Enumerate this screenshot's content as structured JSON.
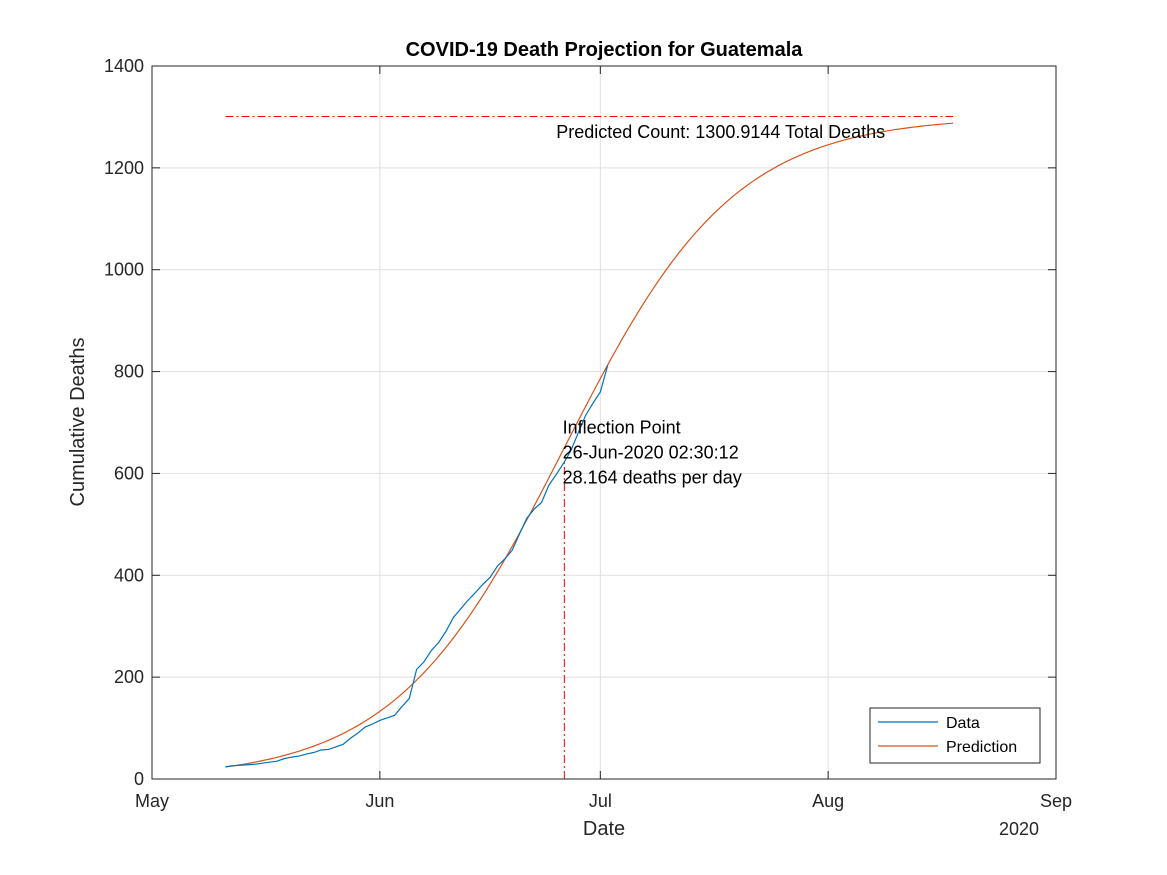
{
  "chart_data": {
    "type": "line",
    "title": "COVID-19 Death Projection for Guatemala",
    "xlabel": "Date",
    "ylabel": "Cumulative Deaths",
    "year_label": "2020",
    "x_range": [
      "2020-05-01",
      "2020-09-01"
    ],
    "ylim": [
      0,
      1400
    ],
    "x_ticks": [
      {
        "date": "2020-05-01",
        "label": "May"
      },
      {
        "date": "2020-06-01",
        "label": "Jun"
      },
      {
        "date": "2020-07-01",
        "label": "Jul"
      },
      {
        "date": "2020-08-01",
        "label": "Aug"
      },
      {
        "date": "2020-09-01",
        "label": "Sep"
      }
    ],
    "y_ticks": [
      0,
      200,
      400,
      600,
      800,
      1000,
      1200,
      1400
    ],
    "grid": true,
    "legend_position": "bottom-right",
    "series": [
      {
        "name": "Data",
        "color": "#0072BD",
        "points": [
          [
            "2020-05-11",
            24
          ],
          [
            "2020-05-12",
            26
          ],
          [
            "2020-05-13",
            27
          ],
          [
            "2020-05-14",
            28
          ],
          [
            "2020-05-15",
            29
          ],
          [
            "2020-05-16",
            31
          ],
          [
            "2020-05-17",
            33
          ],
          [
            "2020-05-18",
            35
          ],
          [
            "2020-05-19",
            40
          ],
          [
            "2020-05-20",
            43
          ],
          [
            "2020-05-21",
            45
          ],
          [
            "2020-05-22",
            49
          ],
          [
            "2020-05-23",
            52
          ],
          [
            "2020-05-24",
            57
          ],
          [
            "2020-05-25",
            58
          ],
          [
            "2020-05-26",
            63
          ],
          [
            "2020-05-27",
            68
          ],
          [
            "2020-05-28",
            80
          ],
          [
            "2020-05-29",
            90
          ],
          [
            "2020-05-30",
            102
          ],
          [
            "2020-05-31",
            108
          ],
          [
            "2020-06-01",
            115
          ],
          [
            "2020-06-02",
            120
          ],
          [
            "2020-06-03",
            125
          ],
          [
            "2020-06-04",
            142
          ],
          [
            "2020-06-05",
            158
          ],
          [
            "2020-06-06",
            215
          ],
          [
            "2020-06-07",
            230
          ],
          [
            "2020-06-08",
            252
          ],
          [
            "2020-06-09",
            268
          ],
          [
            "2020-06-10",
            290
          ],
          [
            "2020-06-11",
            317
          ],
          [
            "2020-06-12",
            334
          ],
          [
            "2020-06-13",
            351
          ],
          [
            "2020-06-14",
            366
          ],
          [
            "2020-06-15",
            382
          ],
          [
            "2020-06-16",
            396
          ],
          [
            "2020-06-17",
            418
          ],
          [
            "2020-06-18",
            432
          ],
          [
            "2020-06-19",
            449
          ],
          [
            "2020-06-20",
            481
          ],
          [
            "2020-06-21",
            512
          ],
          [
            "2020-06-22",
            530
          ],
          [
            "2020-06-23",
            543
          ],
          [
            "2020-06-24",
            577
          ],
          [
            "2020-06-25",
            598
          ],
          [
            "2020-06-26",
            620
          ],
          [
            "2020-06-27",
            645
          ],
          [
            "2020-06-28",
            680
          ],
          [
            "2020-06-29",
            714
          ],
          [
            "2020-06-30",
            738
          ],
          [
            "2020-07-01",
            760
          ],
          [
            "2020-07-02",
            812
          ]
        ]
      },
      {
        "name": "Prediction",
        "color": "#D95319",
        "model": {
          "type": "logistic",
          "asymptote": 1300.9144,
          "midpoint": "2020-06-26T02:30:12",
          "peak_rate_per_day": 28.164,
          "start": "2020-05-11",
          "end": "2020-08-18"
        }
      }
    ],
    "reference_lines": [
      {
        "orientation": "horizontal",
        "y": 1300.9144,
        "from": "2020-05-11",
        "to": "2020-08-18",
        "color": "#FF0000",
        "style": "dash-dot"
      },
      {
        "orientation": "vertical",
        "x": "2020-06-26T02:30:12",
        "from_y": 0,
        "to_y": 625,
        "color": "#FF0000",
        "style": "dash-dot"
      }
    ],
    "annotations": [
      {
        "text": "Predicted Count: 1300.9144 Total Deaths",
        "x": "2020-06-25",
        "y": 1270
      },
      {
        "lines": [
          "Inflection Point",
          "26-Jun-2020 02:30:12",
          "28.164 deaths per day"
        ],
        "x": "2020-06-26",
        "y": 690
      }
    ]
  }
}
